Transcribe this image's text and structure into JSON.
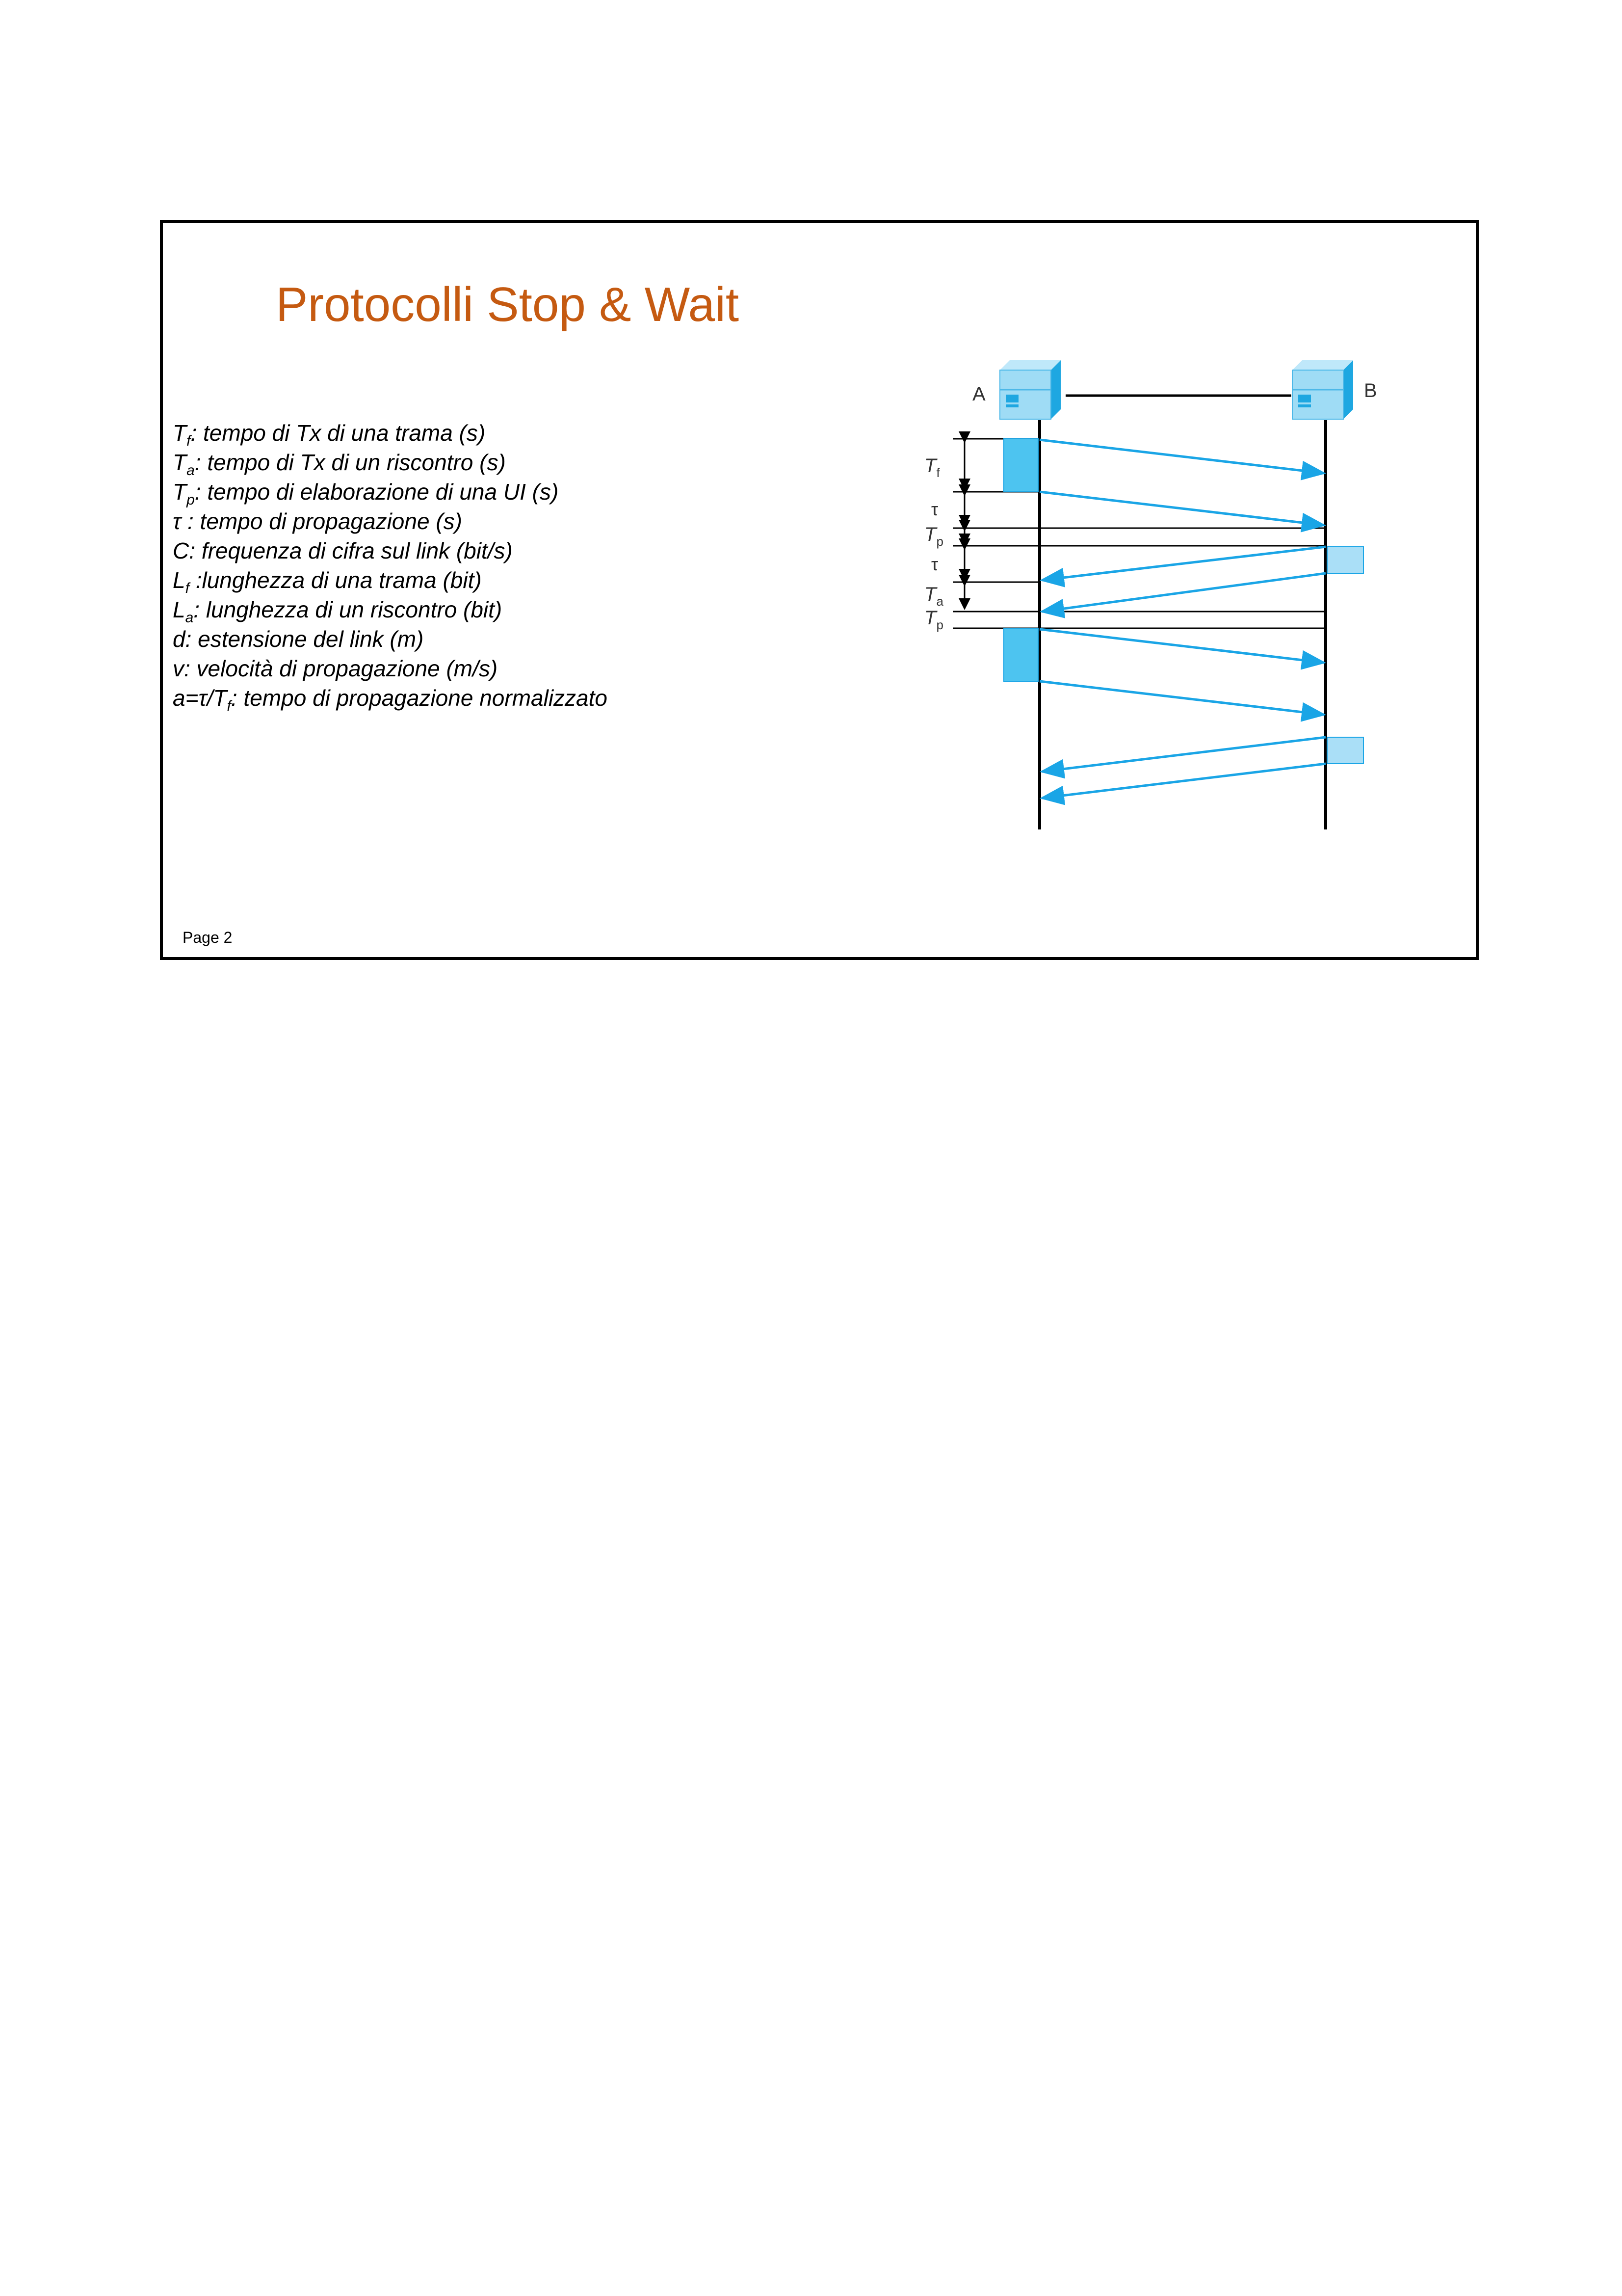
{
  "slide": {
    "title": "Protocolli Stop & Wait",
    "page_label": "Page 2"
  },
  "definitions": [
    {
      "sym": "T",
      "sub": "f",
      "text": ":  tempo di Tx di una trama (s)"
    },
    {
      "sym": "T",
      "sub": "a",
      "text": ": tempo di Tx di un riscontro (s)"
    },
    {
      "sym": "T",
      "sub": "p",
      "text": ": tempo di elaborazione di una UI (s)"
    },
    {
      "sym": "τ",
      "sub": "",
      "text": " : tempo di propagazione (s)"
    },
    {
      "sym": "C",
      "sub": "",
      "text": ": frequenza di cifra sul link (bit/s)"
    },
    {
      "sym": "L",
      "sub": "f",
      "text": " :lunghezza di una trama (bit)"
    },
    {
      "sym": "L",
      "sub": "a",
      "text": ": lunghezza di un riscontro (bit)"
    },
    {
      "sym": "d",
      "sub": "",
      "text": ":  estensione del link (m)"
    },
    {
      "sym": "v",
      "sub": "",
      "text": ":  velocità di propagazione (m/s)"
    },
    {
      "sym": "a=τ/T",
      "sub": "f",
      "text": ": tempo di propagazione normalizzato"
    }
  ],
  "diagram": {
    "node_a": "A",
    "node_b": "B",
    "labels": [
      {
        "sym": "T",
        "sub": "f"
      },
      {
        "sym": "τ",
        "sub": ""
      },
      {
        "sym": "T",
        "sub": "p"
      },
      {
        "sym": "τ",
        "sub": ""
      },
      {
        "sym": "T",
        "sub": "a"
      },
      {
        "sym": "T",
        "sub": "p"
      }
    ],
    "colors": {
      "arrow": "#1aa5e6",
      "frame_block": "#4dc4f0",
      "ack_block": "#aadff7",
      "computer_light": "#9fdcf5",
      "computer_dark": "#1ea7e1"
    }
  }
}
